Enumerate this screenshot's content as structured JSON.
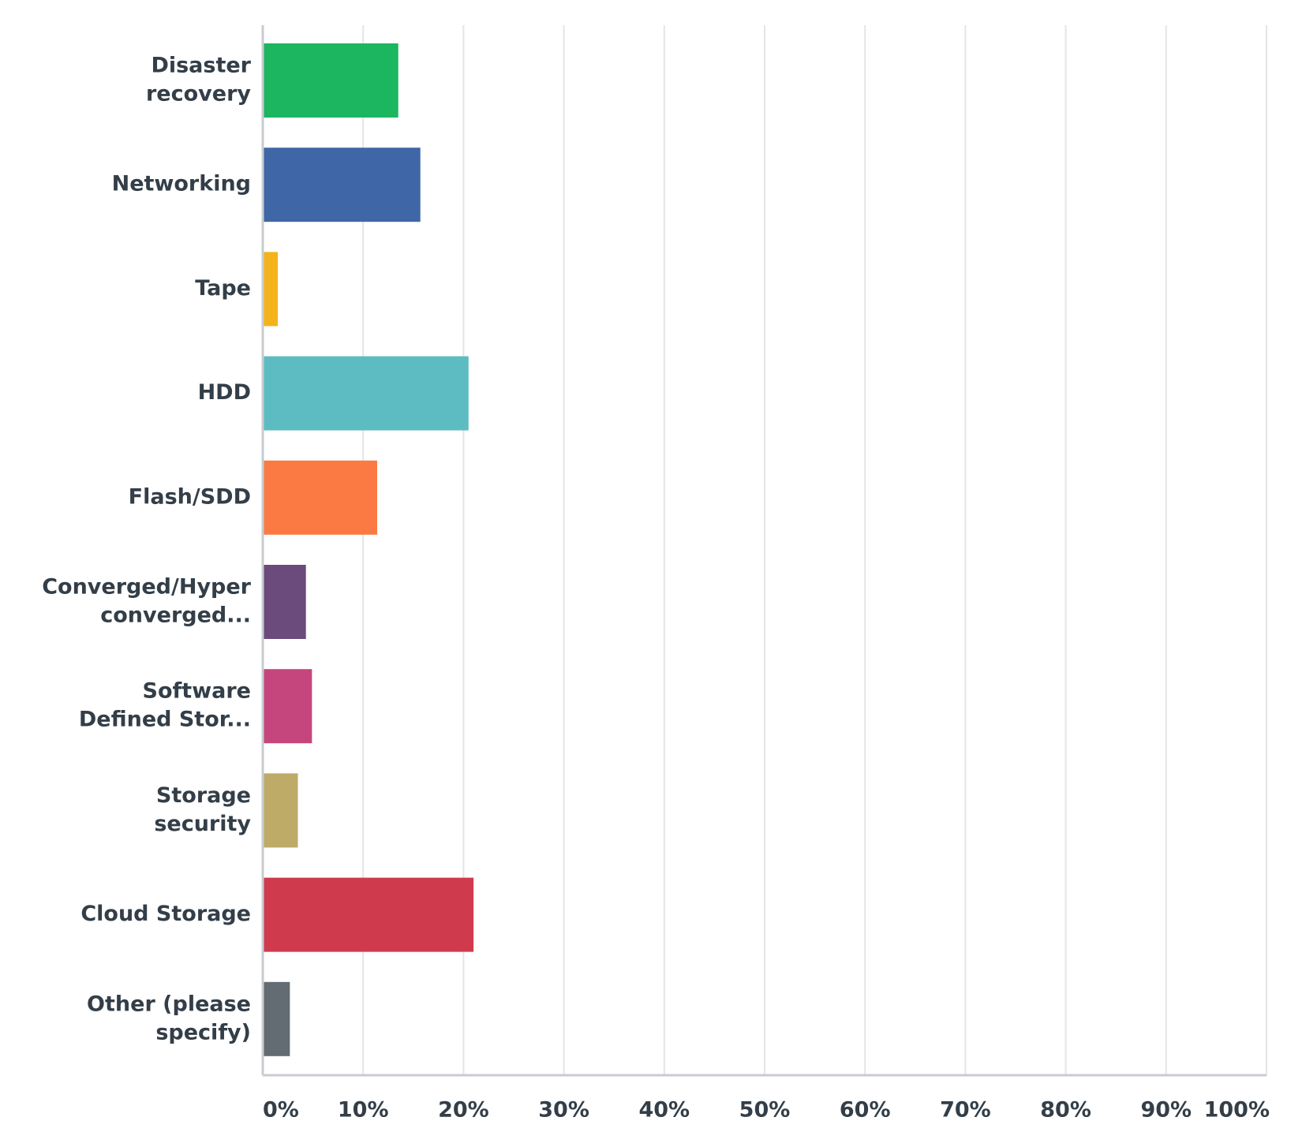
{
  "chart_data": {
    "type": "bar",
    "orientation": "horizontal",
    "categories": [
      [
        "Disaster",
        "recovery"
      ],
      [
        "Networking"
      ],
      [
        "Tape"
      ],
      [
        "HDD"
      ],
      [
        "Flash/SDD"
      ],
      [
        "Converged/Hyper",
        "converged..."
      ],
      [
        "Software",
        "Defined Stor..."
      ],
      [
        "Storage",
        "security"
      ],
      [
        "Cloud Storage"
      ],
      [
        "Other (please",
        "specify)"
      ]
    ],
    "values": [
      13.5,
      15.7,
      1.5,
      20.5,
      11.4,
      4.3,
      4.9,
      3.5,
      21.0,
      2.7
    ],
    "colors": [
      "#1bb65f",
      "#3f66a6",
      "#f5b31b",
      "#5dbcc2",
      "#fb7a43",
      "#6b4a7c",
      "#c5467c",
      "#bdab67",
      "#cf3a4d",
      "#636b73"
    ],
    "xlim": [
      0,
      100
    ],
    "x_ticks": [
      "0%",
      "10%",
      "20%",
      "30%",
      "40%",
      "50%",
      "60%",
      "70%",
      "80%",
      "90%",
      "100%"
    ],
    "grid": true,
    "title": "",
    "xlabel": "",
    "ylabel": ""
  }
}
